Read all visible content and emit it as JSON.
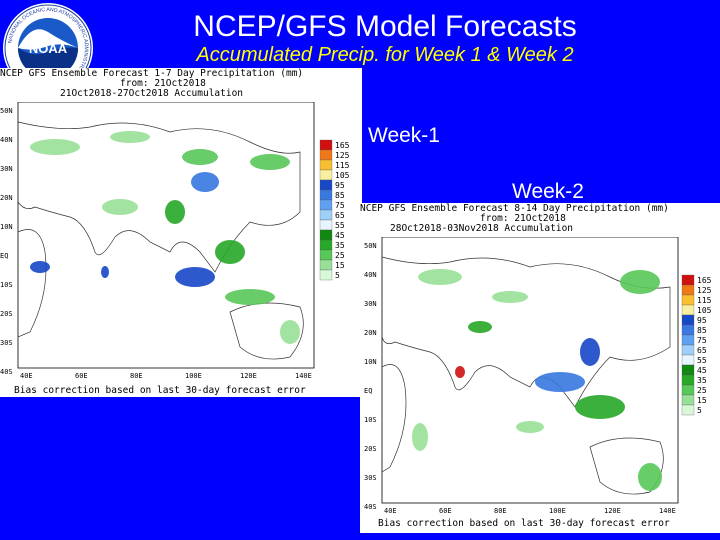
{
  "title": "NCEP/GFS Model Forecasts",
  "subtitle": "Accumulated Precip. for Week 1 & Week 2",
  "logo_text": "NOAA",
  "logo_ring_text": "NATIONAL OCEANIC AND ATMOSPHERIC ADMINISTRATION",
  "week1_label": "Week-1",
  "week2_label": "Week-2",
  "week1_map": {
    "header_line1": "NCEP GFS Ensemble Forecast 1-7 Day Precipitation (mm)",
    "header_line2": "from: 21Oct2018",
    "header_line3": "21Oct2018-27Oct2018 Accumulation",
    "footer": "Bias correction based on last 30-day forecast error",
    "lat_labels": [
      "50N",
      "40N",
      "30N",
      "20N",
      "10N",
      "EQ",
      "10S",
      "20S",
      "30S",
      "40S"
    ],
    "lon_labels": [
      "40E",
      "60E",
      "80E",
      "100E",
      "120E",
      "140E"
    ],
    "legend": [
      "165",
      "125",
      "115",
      "105",
      "95",
      "85",
      "75",
      "65",
      "55",
      "45",
      "35",
      "25",
      "15",
      "5"
    ]
  },
  "week2_map": {
    "header_line1": "NCEP GFS Ensemble Forecast 8-14 Day Precipitation (mm)",
    "header_line2": "from: 21Oct2018",
    "header_line3": "28Oct2018-03Nov2018 Accumulation",
    "footer": "Bias correction based on last 30-day forecast error",
    "lat_labels": [
      "50N",
      "40N",
      "30N",
      "20N",
      "10N",
      "EQ",
      "10S",
      "20S",
      "30S",
      "40S"
    ],
    "lon_labels": [
      "40E",
      "60E",
      "80E",
      "100E",
      "120E",
      "140E"
    ],
    "legend": [
      "165",
      "125",
      "115",
      "105",
      "95",
      "85",
      "75",
      "65",
      "55",
      "45",
      "35",
      "25",
      "15",
      "5"
    ]
  },
  "legend_colors": [
    "#d01010",
    "#f07818",
    "#f8c030",
    "#f8f0a0",
    "#1848c8",
    "#3878e0",
    "#60a0f0",
    "#a0d0f8",
    "#e8f4ff",
    "#118811",
    "#28a828",
    "#58c858",
    "#98e098",
    "#d8f8d8"
  ]
}
